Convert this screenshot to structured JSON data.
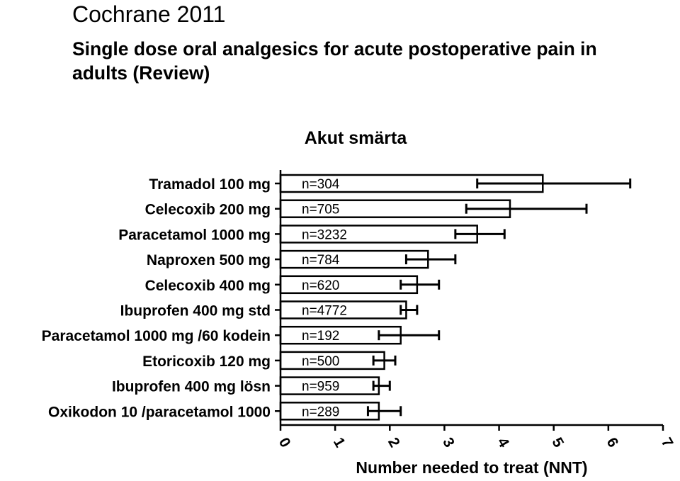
{
  "header": {
    "title": "Cochrane 2011",
    "subtitle_line1": "Single dose oral analgesics for acute postoperative pain in",
    "subtitle_line2": "adults (Review)"
  },
  "chart_data": {
    "type": "bar",
    "orientation": "horizontal",
    "title": "Akut smärta",
    "xlabel": "Number needed to treat (NNT)",
    "ylabel": "",
    "xlim": [
      0,
      7
    ],
    "xticks": [
      "0",
      "1",
      "2",
      "3",
      "4",
      "5",
      "6",
      "7"
    ],
    "grid": false,
    "legend": "none",
    "categories": [
      "Tramadol 100 mg",
      "Celecoxib 200 mg",
      "Paracetamol 1000 mg",
      "Naproxen 500 mg",
      "Celecoxib 400 mg",
      "Ibuprofen 400 mg std",
      "Paracetamol 1000 mg /60 kodein",
      "Etoricoxib 120 mg",
      "Ibuprofen 400 mg lösn",
      "Oxikodon 10 /paracetamol 1000"
    ],
    "values": [
      4.8,
      4.2,
      3.6,
      2.7,
      2.5,
      2.3,
      2.2,
      1.9,
      1.8,
      1.8
    ],
    "ci_low": [
      3.6,
      3.4,
      3.2,
      2.3,
      2.2,
      2.2,
      1.8,
      1.7,
      1.7,
      1.6
    ],
    "ci_high": [
      6.4,
      5.6,
      4.1,
      3.2,
      2.9,
      2.5,
      2.9,
      2.1,
      2.0,
      2.2
    ],
    "n_labels": [
      "n=304",
      "n=705",
      "n=3232",
      "n=784",
      "n=620",
      "n=4772",
      "n=192",
      "n=500",
      "n=959",
      "n=289"
    ]
  }
}
